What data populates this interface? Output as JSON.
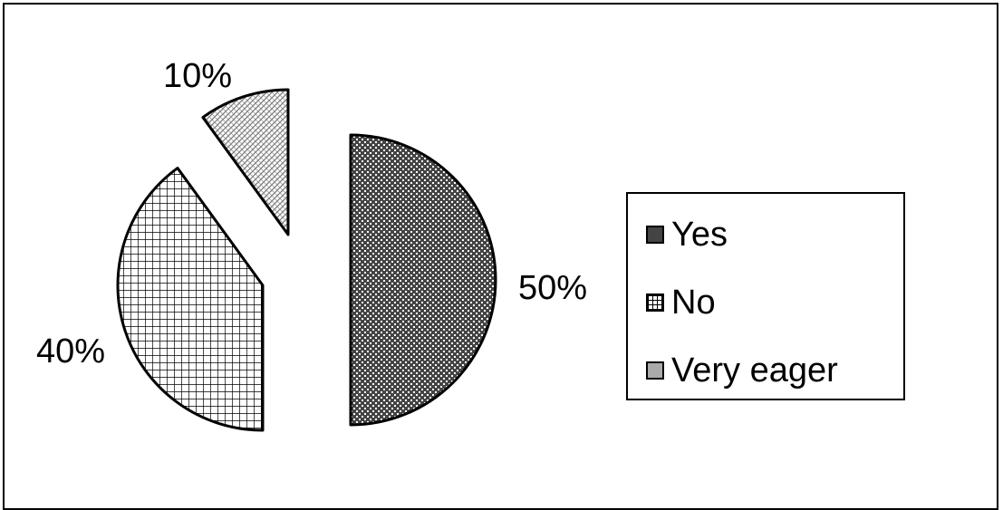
{
  "chart_data": {
    "type": "pie",
    "title": "",
    "categories": [
      "Yes",
      "No",
      "Very eager"
    ],
    "values": [
      50,
      40,
      10
    ],
    "data_labels": [
      "50%",
      "40%",
      "10%"
    ],
    "legend": {
      "placement": "right",
      "items": [
        "Yes",
        "No",
        "Very eager"
      ]
    },
    "series_fills": [
      "dark-dotted-pattern",
      "grid-pattern",
      "light-speckle-pattern"
    ],
    "colors": {
      "yes": "#333333",
      "no": "#ffffff",
      "very_eager": "#aaaaaa",
      "outline": "#000000"
    }
  }
}
